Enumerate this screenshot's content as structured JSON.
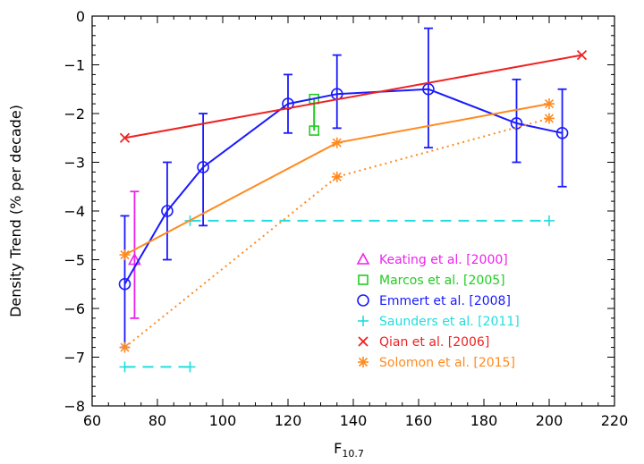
{
  "chart_data": {
    "type": "line",
    "xlabel": "F",
    "xlabel_subscript": "10.7",
    "ylabel": "Density Trend (% per decade)",
    "xlim": [
      60,
      220
    ],
    "ylim": [
      -8,
      0
    ],
    "xticks": [
      "60",
      "80",
      "100",
      "120",
      "140",
      "160",
      "180",
      "200",
      "220"
    ],
    "yticks": [
      "0",
      "−1",
      "−2",
      "−3",
      "−4",
      "−5",
      "−6",
      "−7",
      "−8"
    ],
    "legend_position": "bottom-right",
    "grid": false,
    "series": [
      {
        "name": "Keating et al.",
        "ref": "[2000]",
        "color": "#ee22ee",
        "marker": "triangle",
        "line": "none",
        "points": [
          {
            "x": 73,
            "y": -5.0,
            "lo": -6.2,
            "hi": -3.6
          }
        ]
      },
      {
        "name": "Marcos et al.",
        "ref": "[2005]",
        "color": "#22cc22",
        "marker": "square",
        "line": "solid",
        "points": [
          {
            "x": 128,
            "y": -1.7
          },
          {
            "x": 128,
            "y": -2.35
          }
        ]
      },
      {
        "name": "Emmert et al.",
        "ref": "[2008]",
        "color": "#1a1aff",
        "marker": "circle",
        "line": "solid",
        "points": [
          {
            "x": 70,
            "y": -5.5,
            "lo": -6.8,
            "hi": -4.1
          },
          {
            "x": 83,
            "y": -4.0,
            "lo": -5.0,
            "hi": -3.0
          },
          {
            "x": 94,
            "y": -3.1,
            "lo": -4.3,
            "hi": -2.0
          },
          {
            "x": 120,
            "y": -1.8,
            "lo": -2.4,
            "hi": -1.2
          },
          {
            "x": 135,
            "y": -1.6,
            "lo": -2.3,
            "hi": -0.8
          },
          {
            "x": 163,
            "y": -1.5,
            "lo": -2.7,
            "hi": -0.25
          },
          {
            "x": 190,
            "y": -2.2,
            "lo": -3.0,
            "hi": -1.3
          },
          {
            "x": 204,
            "y": -2.4,
            "lo": -3.5,
            "hi": -1.5
          }
        ]
      },
      {
        "name": "Saunders et al.",
        "ref": "[2011]",
        "color": "#22dddd",
        "marker": "plus",
        "line": "dashed",
        "segments": [
          [
            {
              "x": 70,
              "y": -7.2
            },
            {
              "x": 90,
              "y": -7.2
            }
          ],
          [
            {
              "x": 90,
              "y": -4.2
            },
            {
              "x": 200,
              "y": -4.2
            }
          ]
        ]
      },
      {
        "name": "Qian et al.",
        "ref": "[2006]",
        "color": "#ee2222",
        "marker": "x",
        "line": "solid",
        "points": [
          {
            "x": 70,
            "y": -2.5
          },
          {
            "x": 210,
            "y": -0.8
          }
        ]
      },
      {
        "name": "Solomon et al.",
        "ref": "[2015]",
        "color": "#ff8a1f",
        "marker": "asterisk",
        "line": "solid",
        "points": [
          {
            "x": 70,
            "y": -4.9
          },
          {
            "x": 135,
            "y": -2.6
          },
          {
            "x": 200,
            "y": -1.8
          }
        ]
      },
      {
        "color": "#ff8a1f",
        "marker": "asterisk",
        "line": "dotted",
        "points": [
          {
            "x": 70,
            "y": -6.8
          },
          {
            "x": 135,
            "y": -3.3
          },
          {
            "x": 200,
            "y": -2.1
          }
        ]
      }
    ]
  }
}
